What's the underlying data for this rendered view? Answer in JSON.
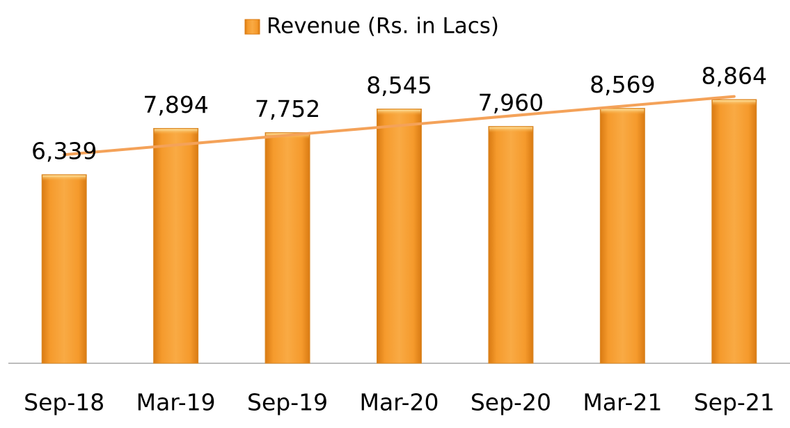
{
  "chart_data": {
    "type": "bar",
    "categories": [
      "Sep-18",
      "Mar-19",
      "Sep-19",
      "Mar-20",
      "Sep-20",
      "Mar-21",
      "Sep-21"
    ],
    "series": [
      {
        "name": "Revenue (Rs. in Lacs)",
        "color": "#f59a2c",
        "values": [
          6339,
          7894,
          7752,
          8545,
          7960,
          8569,
          8864
        ],
        "value_labels": [
          "6,339",
          "7,894",
          "7,752",
          "8,545",
          "7,960",
          "8,569",
          "8,864"
        ]
      }
    ],
    "trendline": {
      "type": "linear",
      "color": "#f4a259"
    },
    "legend": "top"
  }
}
